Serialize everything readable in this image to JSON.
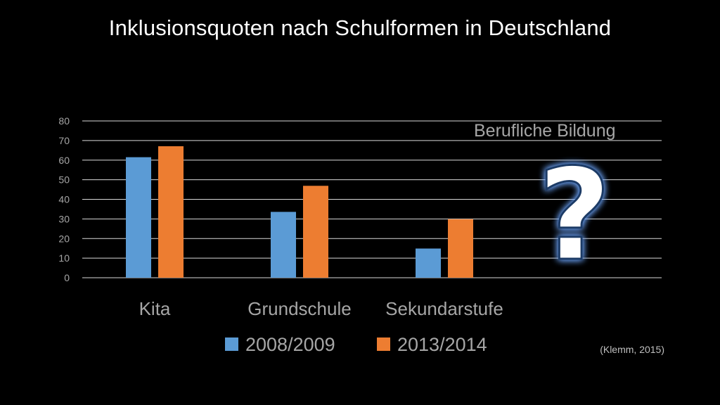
{
  "slide": {
    "title": "Inklusionsquoten nach Schulformen in Deutschland",
    "source": "(Klemm, 2015)"
  },
  "annotation": {
    "label": "Berufliche Bildung",
    "symbol": "?",
    "symbol_icon": "question-mark-icon"
  },
  "colors": {
    "background": "#000000",
    "series1": "#5b9bd5",
    "series2": "#ed7d31",
    "gridline": "#d9d9d9",
    "label": "#a6a6a6"
  },
  "chart_data": {
    "type": "bar",
    "title": "",
    "xlabel": "",
    "ylabel": "",
    "categories": [
      "Kita",
      "Grundschule",
      "Sekundarstufe",
      ""
    ],
    "series": [
      {
        "name": "2008/2009",
        "values": [
          61.5,
          33.6,
          14.9,
          null
        ]
      },
      {
        "name": "2013/2014",
        "values": [
          67.1,
          46.9,
          29.9,
          null
        ]
      }
    ],
    "yticks": [
      "0",
      "10",
      "20",
      "30",
      "40",
      "50",
      "60",
      "70",
      "80"
    ],
    "ylim": [
      0,
      80
    ],
    "grid": true,
    "legend_position": "bottom"
  }
}
